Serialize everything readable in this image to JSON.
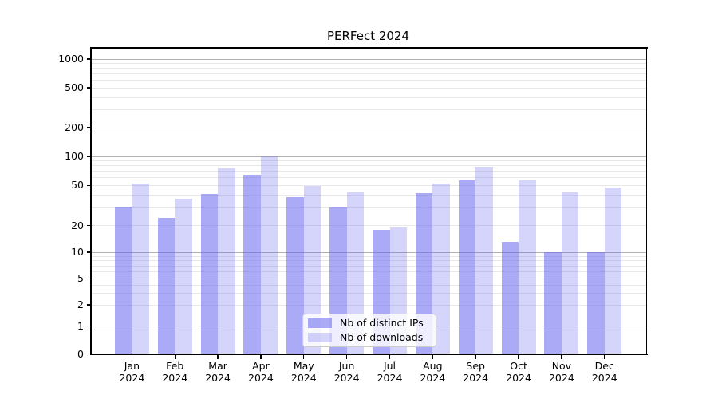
{
  "chart_data": {
    "type": "bar",
    "title": "PERFect 2024",
    "categories": [
      "Jan",
      "Feb",
      "Mar",
      "Apr",
      "May",
      "Jun",
      "Jul",
      "Aug",
      "Sep",
      "Oct",
      "Nov",
      "Dec"
    ],
    "x_year_label": "2024",
    "series": [
      {
        "name": "Nb of distinct IPs",
        "color": "#a9a9f1",
        "fill": "rgba(100,100,240,0.55)",
        "values": [
          31,
          24,
          41,
          65,
          38,
          30,
          18,
          42,
          56,
          13,
          10,
          10
        ]
      },
      {
        "name": "Nb of downloads",
        "color": "#d8d8f7",
        "fill": "rgba(100,100,240,0.27)",
        "values": [
          52,
          37,
          75,
          100,
          49,
          43,
          19,
          52,
          78,
          56,
          43,
          48
        ]
      }
    ],
    "yscale": "symlog",
    "y_ticks": [
      0,
      1,
      2,
      5,
      10,
      20,
      50,
      100,
      200,
      500,
      1000
    ],
    "y_minor_gridlines": [
      2,
      3,
      4,
      5,
      6,
      7,
      8,
      9,
      20,
      30,
      40,
      50,
      60,
      70,
      80,
      90,
      200,
      300,
      400,
      500,
      600,
      700,
      800,
      900
    ],
    "y_major_gridlines": [
      1,
      10,
      100,
      1000
    ],
    "ylim": [
      0,
      1300
    ],
    "grid": true,
    "legend_position": "lower center",
    "background": "#ffffff"
  }
}
